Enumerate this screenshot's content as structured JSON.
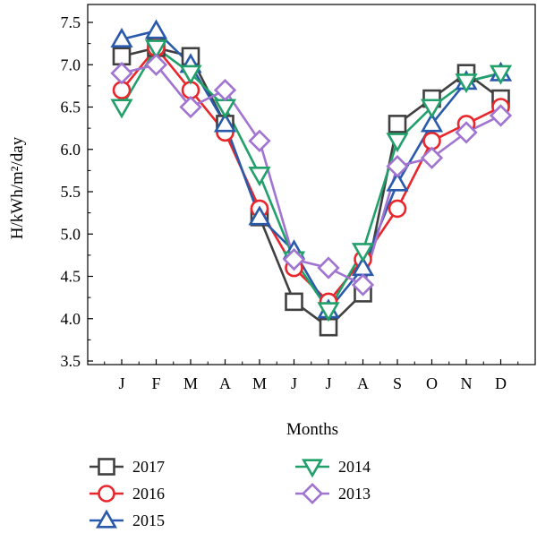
{
  "chart_data": {
    "type": "line",
    "xlabel": "Months",
    "ylabel": "H/kWh/m²/day",
    "categories": [
      "J",
      "F",
      "M",
      "A",
      "M",
      "J",
      "J",
      "A",
      "S",
      "O",
      "N",
      "D"
    ],
    "ylim": [
      3.5,
      7.5
    ],
    "yticks": [
      "3.5",
      "4.0",
      "4.5",
      "5.0",
      "5.5",
      "6.0",
      "6.5",
      "7.0",
      "7.5"
    ],
    "grid": false,
    "legend_position": "bottom",
    "series": [
      {
        "name": "2017",
        "color": "#404040",
        "marker": "square",
        "values": [
          7.1,
          7.2,
          7.1,
          6.3,
          5.2,
          4.2,
          3.9,
          4.3,
          6.3,
          6.6,
          6.9,
          6.6
        ]
      },
      {
        "name": "2016",
        "color": "#e8262b",
        "marker": "circle",
        "values": [
          6.7,
          7.2,
          6.7,
          6.2,
          5.3,
          4.6,
          4.2,
          4.7,
          5.3,
          6.1,
          6.3,
          6.5
        ]
      },
      {
        "name": "2015",
        "color": "#2a5aab",
        "marker": "triangle-up",
        "values": [
          7.3,
          7.4,
          7.0,
          6.3,
          5.2,
          4.8,
          4.1,
          4.6,
          5.6,
          6.3,
          6.8,
          6.9
        ]
      },
      {
        "name": "2014",
        "color": "#22a06b",
        "marker": "triangle-down",
        "values": [
          6.5,
          7.2,
          6.9,
          6.5,
          5.7,
          4.7,
          4.1,
          4.8,
          6.1,
          6.5,
          6.8,
          6.9
        ]
      },
      {
        "name": "2013",
        "color": "#a074d0",
        "marker": "diamond",
        "values": [
          6.9,
          7.0,
          6.5,
          6.7,
          6.1,
          4.7,
          4.6,
          4.4,
          5.8,
          5.9,
          6.2,
          6.4
        ]
      }
    ]
  }
}
